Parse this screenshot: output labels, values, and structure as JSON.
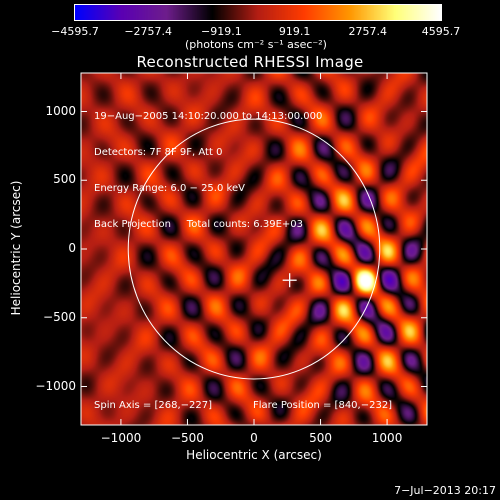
{
  "chart_data": {
    "type": "heatmap",
    "title": "Reconstructed RHESSI Image",
    "xlabel": "Heliocentric X (arcsec)",
    "ylabel": "Heliocentric Y (arcsec)",
    "xlim": [
      -1300,
      1300
    ],
    "ylim": [
      -1280,
      1280
    ],
    "x_ticks": [
      "−1000",
      "−500",
      "0",
      "500",
      "1000"
    ],
    "y_ticks": [
      "1000",
      "500",
      "0",
      "−500",
      "−1000"
    ],
    "x_tick_values": [
      -1000,
      -500,
      0,
      500,
      1000
    ],
    "y_tick_values": [
      1000,
      500,
      0,
      -500,
      -1000
    ],
    "colorbar": {
      "ticks": [
        "−4595.7",
        "−2757.4",
        "−919.1",
        "919.1",
        "2757.4",
        "4595.7"
      ],
      "tick_values": [
        -4595.7,
        -2757.4,
        -919.1,
        919.1,
        2757.4,
        4595.7
      ],
      "range": [
        -4595.7,
        4595.7
      ],
      "units": "(photons cm⁻² s⁻¹ asec⁻²)",
      "colors": [
        "#0000ff",
        "#5a00b4",
        "#6e1e8c",
        "#000000",
        "#b41e14",
        "#ff3c00",
        "#ff9600",
        "#ffff78",
        "#ffffff"
      ]
    },
    "info_lines": [
      "19−Aug−2005 14:10:20.000 to 14:13:00.000",
      "Detectors: 7F 8F 9F, Att 0",
      "Energy Range: 6.0 − 25.0 keV",
      "Back Projection     Total counts: 6.39E+03"
    ],
    "spin_axis": "Spin Axis = [268,−227]",
    "flare_position": "Flare Position = [840,−232]",
    "solar_limb_radius_arcsec": 945,
    "spin_axis_xy": [
      268,
      -227
    ],
    "flare_xy": [
      840,
      -232
    ],
    "grid": false
  },
  "footer": {
    "timestamp": "7−Jul−2013 20:17"
  }
}
